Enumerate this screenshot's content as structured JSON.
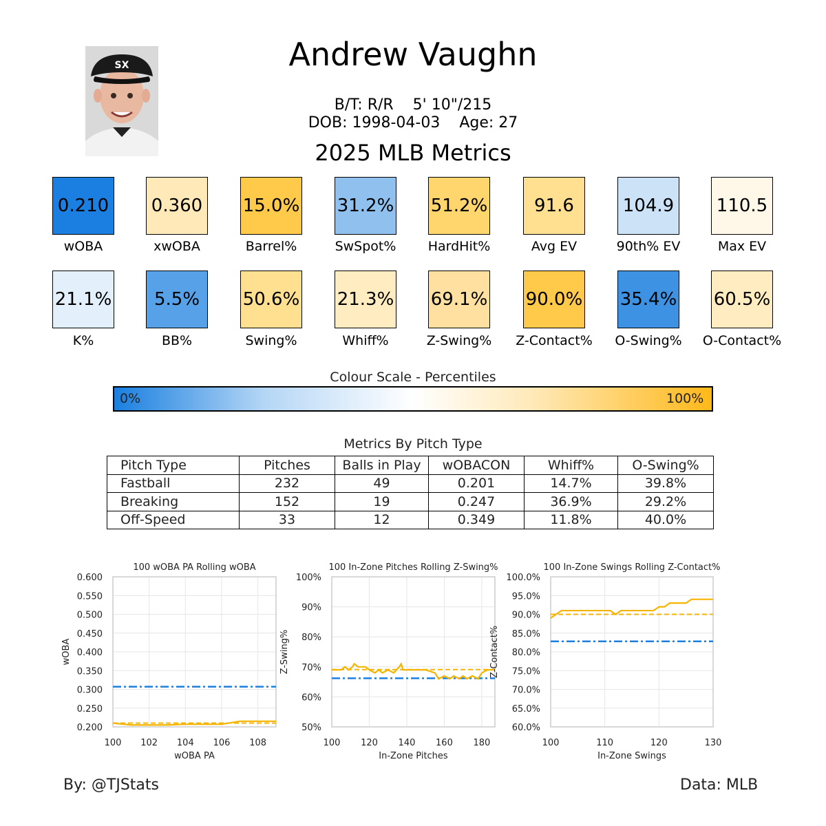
{
  "header": {
    "name": "Andrew Vaughn",
    "bats_throws": "B/T: R/R",
    "height_weight": "5' 10\"/215",
    "dob": "DOB: 1998-04-03",
    "age": "Age: 27",
    "season_title": "2025 MLB Metrics"
  },
  "colors": {
    "blue": "#1a7fe0",
    "orange": "#ffb81a",
    "league_line": "#1a7fe0",
    "player_line": "#f5b400"
  },
  "metrics_row1": [
    {
      "label": "wOBA",
      "value": "0.210",
      "color": "#1a7fe0"
    },
    {
      "label": "xwOBA",
      "value": "0.360",
      "color": "#ffe9b8"
    },
    {
      "label": "Barrel%",
      "value": "15.0%",
      "color": "#ffc94a"
    },
    {
      "label": "SwSpot%",
      "value": "31.2%",
      "color": "#8fc0ee"
    },
    {
      "label": "HardHit%",
      "value": "51.2%",
      "color": "#ffd56e"
    },
    {
      "label": "Avg EV",
      "value": "91.6",
      "color": "#ffdf90"
    },
    {
      "label": "90th% EV",
      "value": "104.9",
      "color": "#cce3f7"
    },
    {
      "label": "Max EV",
      "value": "110.5",
      "color": "#fff8e8"
    }
  ],
  "metrics_row2": [
    {
      "label": "K%",
      "value": "21.1%",
      "color": "#e3effb"
    },
    {
      "label": "BB%",
      "value": "5.5%",
      "color": "#57a1e8"
    },
    {
      "label": "Swing%",
      "value": "50.6%",
      "color": "#ffdf90"
    },
    {
      "label": "Whiff%",
      "value": "21.3%",
      "color": "#ffecc0"
    },
    {
      "label": "Z-Swing%",
      "value": "69.1%",
      "color": "#ffe0a0"
    },
    {
      "label": "Z-Contact%",
      "value": "90.0%",
      "color": "#ffc94a"
    },
    {
      "label": "O-Swing%",
      "value": "35.4%",
      "color": "#3d92e4"
    },
    {
      "label": "O-Contact%",
      "value": "60.5%",
      "color": "#ffecc0"
    }
  ],
  "colour_scale": {
    "title": "Colour Scale - Percentiles",
    "min_label": "0%",
    "max_label": "100%"
  },
  "pitch_table": {
    "title": "Metrics By Pitch Type",
    "columns": [
      "Pitch Type",
      "Pitches",
      "Balls in Play",
      "wOBACON",
      "Whiff%",
      "O-Swing%"
    ],
    "rows": [
      [
        "Fastball",
        "232",
        "49",
        "0.201",
        "14.7%",
        "39.8%"
      ],
      [
        "Breaking",
        "152",
        "19",
        "0.247",
        "36.9%",
        "29.2%"
      ],
      [
        "Off-Speed",
        "33",
        "12",
        "0.349",
        "11.8%",
        "40.0%"
      ]
    ]
  },
  "chart_data": [
    {
      "type": "line",
      "title": "100 wOBA PA Rolling wOBA",
      "xlabel": "wOBA PA",
      "ylabel": "wOBA",
      "xlim": [
        100,
        109
      ],
      "ylim": [
        0.2,
        0.6
      ],
      "xticks": [
        100,
        102,
        104,
        106,
        108
      ],
      "yticks": [
        0.2,
        0.25,
        0.3,
        0.35,
        0.4,
        0.45,
        0.5,
        0.55,
        0.6
      ],
      "ytick_labels": [
        "0.200",
        "0.250",
        "0.300",
        "0.350",
        "0.400",
        "0.450",
        "0.500",
        "0.550",
        "0.600"
      ],
      "player_x": [
        100,
        101,
        102,
        103,
        104,
        105,
        106,
        107,
        108,
        109
      ],
      "player_y": [
        0.21,
        0.205,
        0.205,
        0.205,
        0.207,
        0.207,
        0.207,
        0.215,
        0.215,
        0.215
      ],
      "player_average": 0.21,
      "league_average": 0.307,
      "grid": true
    },
    {
      "type": "line",
      "title": "100 In-Zone Pitches Rolling Z-Swing%",
      "xlabel": "In-Zone Pitches",
      "ylabel": "Z-Swing%",
      "xlim": [
        100,
        187
      ],
      "ylim": [
        50,
        100
      ],
      "xticks": [
        100,
        120,
        140,
        160,
        180
      ],
      "yticks": [
        50,
        60,
        70,
        80,
        90,
        100
      ],
      "ytick_labels": [
        "50%",
        "60%",
        "70%",
        "80%",
        "90%",
        "100%"
      ],
      "player_x": [
        100,
        105,
        107,
        109,
        111,
        112,
        114,
        118,
        120,
        123,
        125,
        127,
        130,
        133,
        136,
        137,
        138,
        140,
        145,
        150,
        155,
        157,
        160,
        163,
        165,
        168,
        170,
        172,
        175,
        178,
        180,
        183,
        187
      ],
      "player_y": [
        69,
        69,
        70,
        69,
        70,
        71,
        70,
        70,
        69,
        68,
        69,
        68,
        69,
        68,
        70,
        71,
        69,
        69,
        69,
        69,
        68,
        66,
        67,
        66,
        67,
        66,
        67,
        66,
        67,
        66,
        68,
        69,
        69
      ],
      "player_average": 69.1,
      "league_average": 66.2,
      "grid": true
    },
    {
      "type": "line",
      "title": "100 In-Zone Swings Rolling Z-Contact%",
      "xlabel": "In-Zone Swings",
      "ylabel": "Z-Contact%",
      "xlim": [
        100,
        130
      ],
      "ylim": [
        60,
        100
      ],
      "xticks": [
        100,
        110,
        120,
        130
      ],
      "yticks": [
        60,
        65,
        70,
        75,
        80,
        85,
        90,
        95,
        100
      ],
      "ytick_labels": [
        "60.0%",
        "65.0%",
        "70.0%",
        "75.0%",
        "80.0%",
        "85.0%",
        "90.0%",
        "95.0%",
        "100.0%"
      ],
      "player_x": [
        100,
        101,
        102,
        103,
        104,
        105,
        106,
        107,
        108,
        109,
        110,
        111,
        112,
        113,
        114,
        115,
        116,
        117,
        118,
        119,
        120,
        121,
        122,
        123,
        124,
        125,
        126,
        127,
        128,
        129,
        130
      ],
      "player_y": [
        89,
        90,
        91,
        91,
        91,
        91,
        91,
        91,
        91,
        91,
        91,
        91,
        90,
        91,
        91,
        91,
        91,
        91,
        91,
        91,
        92,
        92,
        93,
        93,
        93,
        93,
        94,
        94,
        94,
        94,
        94
      ],
      "player_average": 90.0,
      "league_average": 82.8,
      "grid": true
    }
  ],
  "footer": {
    "byline": "By: @TJStats",
    "source": "Data: MLB"
  }
}
